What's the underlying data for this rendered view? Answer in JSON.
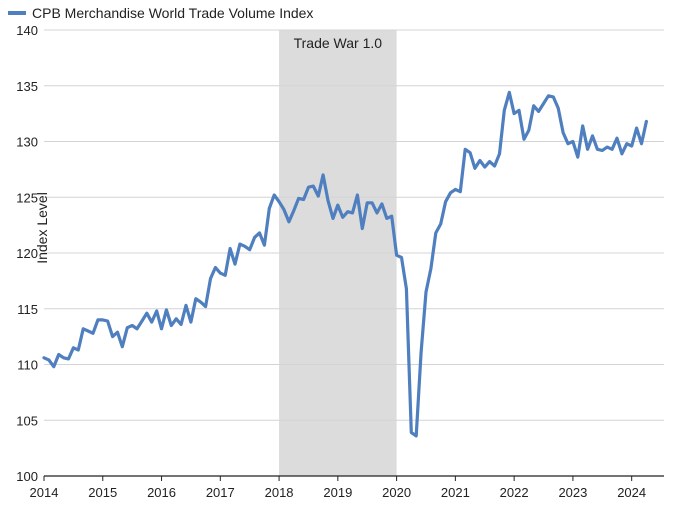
{
  "chart_data": {
    "type": "line",
    "title": "",
    "xlabel": "",
    "ylabel": "Index Level",
    "xlim": [
      2014,
      2024.55
    ],
    "ylim": [
      100,
      140
    ],
    "x_ticks": [
      2014,
      2015,
      2016,
      2017,
      2018,
      2019,
      2020,
      2021,
      2022,
      2023,
      2024
    ],
    "y_ticks": [
      100,
      105,
      110,
      115,
      120,
      125,
      130,
      135,
      140
    ],
    "grid": "horizontal",
    "legend_position": "top-left",
    "series": [
      {
        "name": "CPB Merchandise World Trade Volume Index",
        "color": "#4f7fbf",
        "x": [
          2014.0,
          2014.083,
          2014.167,
          2014.25,
          2014.333,
          2014.417,
          2014.5,
          2014.583,
          2014.667,
          2014.75,
          2014.833,
          2014.917,
          2015.0,
          2015.083,
          2015.167,
          2015.25,
          2015.333,
          2015.417,
          2015.5,
          2015.583,
          2015.667,
          2015.75,
          2015.833,
          2015.917,
          2016.0,
          2016.083,
          2016.167,
          2016.25,
          2016.333,
          2016.417,
          2016.5,
          2016.583,
          2016.667,
          2016.75,
          2016.833,
          2016.917,
          2017.0,
          2017.083,
          2017.167,
          2017.25,
          2017.333,
          2017.417,
          2017.5,
          2017.583,
          2017.667,
          2017.75,
          2017.833,
          2017.917,
          2018.0,
          2018.083,
          2018.167,
          2018.25,
          2018.333,
          2018.417,
          2018.5,
          2018.583,
          2018.667,
          2018.75,
          2018.833,
          2018.917,
          2019.0,
          2019.083,
          2019.167,
          2019.25,
          2019.333,
          2019.417,
          2019.5,
          2019.583,
          2019.667,
          2019.75,
          2019.833,
          2019.917,
          2020.0,
          2020.083,
          2020.167,
          2020.25,
          2020.333,
          2020.417,
          2020.5,
          2020.583,
          2020.667,
          2020.75,
          2020.833,
          2020.917,
          2021.0,
          2021.083,
          2021.167,
          2021.25,
          2021.333,
          2021.417,
          2021.5,
          2021.583,
          2021.667,
          2021.75,
          2021.833,
          2021.917,
          2022.0,
          2022.083,
          2022.167,
          2022.25,
          2022.333,
          2022.417,
          2022.5,
          2022.583,
          2022.667,
          2022.75,
          2022.833,
          2022.917,
          2023.0,
          2023.083,
          2023.167,
          2023.25,
          2023.333,
          2023.417,
          2023.5,
          2023.583,
          2023.667,
          2023.75,
          2023.833,
          2023.917,
          2024.0,
          2024.083,
          2024.167,
          2024.25
        ],
        "values": [
          110.6,
          110.4,
          109.8,
          110.9,
          110.6,
          110.5,
          111.5,
          111.3,
          113.2,
          113.0,
          112.8,
          114.0,
          114.0,
          113.9,
          112.5,
          112.9,
          111.6,
          113.3,
          113.5,
          113.2,
          113.9,
          114.6,
          113.8,
          114.8,
          113.2,
          114.9,
          113.5,
          114.1,
          113.6,
          115.3,
          113.8,
          115.9,
          115.6,
          115.2,
          117.7,
          118.7,
          118.2,
          118.0,
          120.4,
          119.0,
          120.8,
          120.6,
          120.3,
          121.4,
          121.8,
          120.7,
          124.0,
          125.2,
          124.6,
          123.9,
          122.8,
          123.8,
          124.9,
          124.8,
          125.9,
          126.0,
          125.1,
          127.0,
          124.7,
          123.1,
          124.3,
          123.2,
          123.7,
          123.6,
          125.2,
          122.2,
          124.5,
          124.5,
          123.6,
          124.4,
          123.1,
          123.3,
          119.8,
          119.6,
          116.8,
          103.9,
          103.6,
          111.1,
          116.5,
          118.6,
          121.8,
          122.6,
          124.6,
          125.4,
          125.7,
          125.5,
          129.3,
          129.0,
          127.6,
          128.3,
          127.7,
          128.2,
          127.8,
          128.9,
          132.8,
          134.4,
          132.5,
          132.8,
          130.2,
          131.0,
          133.2,
          132.7,
          133.4,
          134.1,
          134.0,
          133.0,
          130.8,
          129.8,
          130.0,
          128.6,
          131.4,
          129.3,
          130.5,
          129.3,
          129.2,
          129.5,
          129.3,
          130.3,
          128.9,
          129.8,
          129.6,
          131.2,
          129.8,
          131.8
        ]
      }
    ],
    "annotations": [
      {
        "label": "Trade War 1.0",
        "x_start": 2018.0,
        "x_end": 2020.0,
        "fill": "#dcdcdc"
      }
    ]
  }
}
